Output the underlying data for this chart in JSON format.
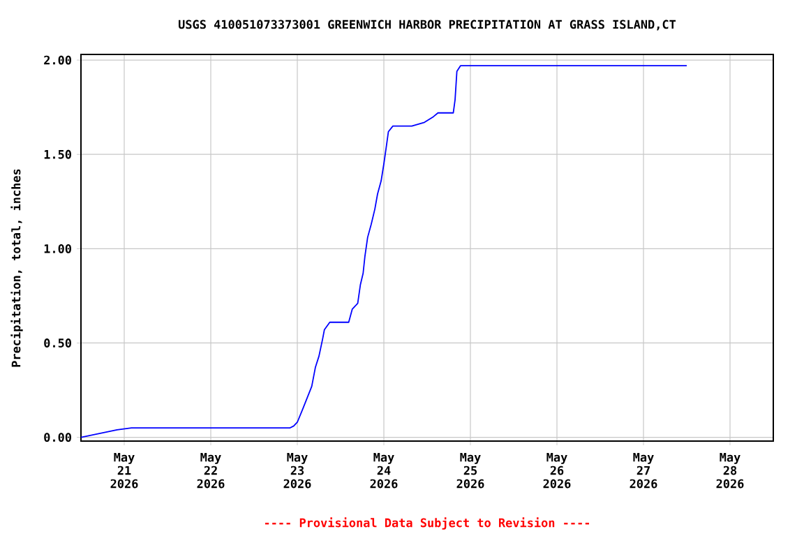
{
  "chart_data": {
    "type": "line",
    "title": "USGS 410051073373001 GREENWICH HARBOR PRECIPITATION AT GRASS ISLAND,CT",
    "ylabel": "Precipitation, total, inches",
    "annotations": [
      "---- Provisional Data Subject to Revision ----"
    ],
    "xlim": [
      "2026-05-20T12:00",
      "2026-05-28T12:00"
    ],
    "ylim": [
      -0.02,
      2.03
    ],
    "xticks": [
      {
        "value": "2026-05-21",
        "label": "May 21 2026"
      },
      {
        "value": "2026-05-22",
        "label": "May 22 2026"
      },
      {
        "value": "2026-05-23",
        "label": "May 23 2026"
      },
      {
        "value": "2026-05-24",
        "label": "May 24 2026"
      },
      {
        "value": "2026-05-25",
        "label": "May 25 2026"
      },
      {
        "value": "2026-05-26",
        "label": "May 26 2026"
      },
      {
        "value": "2026-05-27",
        "label": "May 27 2026"
      },
      {
        "value": "2026-05-28",
        "label": "May 28 2026"
      }
    ],
    "yticks": [
      {
        "value": 0,
        "label": "0.00"
      },
      {
        "value": 0.5,
        "label": "0.50"
      },
      {
        "value": 1.0,
        "label": "1.00"
      },
      {
        "value": 1.5,
        "label": "1.50"
      },
      {
        "value": 2.0,
        "label": "2.00"
      }
    ],
    "grid": true,
    "series": [
      {
        "color": "#0000ff",
        "x": [
          "2026-05-20T12:00",
          "2026-05-20T22:00",
          "2026-05-21T02:00",
          "2026-05-22T22:00",
          "2026-05-22T23:00",
          "2026-05-23T00:00",
          "2026-05-23T01:30",
          "2026-05-23T02:45",
          "2026-05-23T04:00",
          "2026-05-23T05:00",
          "2026-05-23T06:00",
          "2026-05-23T07:00",
          "2026-05-23T07:30",
          "2026-05-23T09:00",
          "2026-05-23T14:15",
          "2026-05-23T15:15",
          "2026-05-23T16:45",
          "2026-05-23T17:30",
          "2026-05-23T18:15",
          "2026-05-23T18:45",
          "2026-05-23T19:30",
          "2026-05-23T20:30",
          "2026-05-23T21:30",
          "2026-05-23T22:15",
          "2026-05-23T23:15",
          "2026-05-24T00:00",
          "2026-05-24T00:45",
          "2026-05-24T01:15",
          "2026-05-24T02:30",
          "2026-05-24T07:45",
          "2026-05-24T11:15",
          "2026-05-24T13:45",
          "2026-05-24T15:00",
          "2026-05-24T19:15",
          "2026-05-24T19:45",
          "2026-05-24T20:15",
          "2026-05-24T21:15",
          "2026-05-27T12:00"
        ],
        "values": [
          0,
          0.04,
          0.05,
          0.05,
          0.06,
          0.08,
          0.15,
          0.21,
          0.27,
          0.37,
          0.43,
          0.52,
          0.57,
          0.61,
          0.61,
          0.68,
          0.71,
          0.81,
          0.87,
          0.96,
          1.06,
          1.13,
          1.21,
          1.29,
          1.36,
          1.45,
          1.55,
          1.62,
          1.65,
          1.65,
          1.67,
          1.7,
          1.72,
          1.72,
          1.79,
          1.94,
          1.97,
          1.97
        ]
      }
    ]
  }
}
